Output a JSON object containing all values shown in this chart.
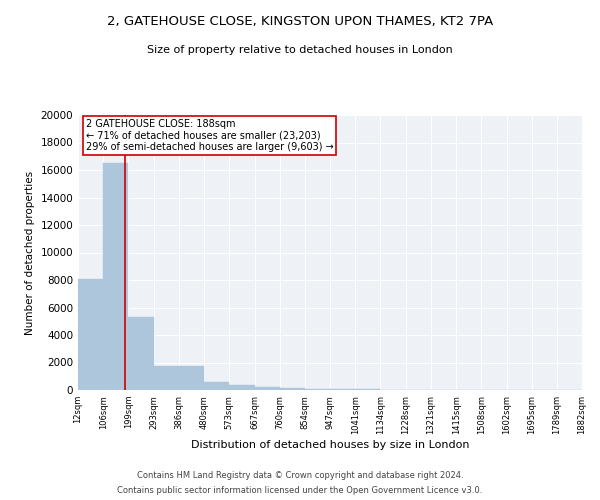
{
  "title": "2, GATEHOUSE CLOSE, KINGSTON UPON THAMES, KT2 7PA",
  "subtitle": "Size of property relative to detached houses in London",
  "xlabel": "Distribution of detached houses by size in London",
  "ylabel": "Number of detached properties",
  "property_size": 188,
  "property_label": "2 GATEHOUSE CLOSE: 188sqm",
  "annotation_line1": "← 71% of detached houses are smaller (23,203)",
  "annotation_line2": "29% of semi-detached houses are larger (9,603) →",
  "bar_color": "#aec6dc",
  "bar_edgecolor": "#aec6dc",
  "redline_color": "#cc0000",
  "annotation_box_edgecolor": "#cc0000",
  "background_color": "#eef2f7",
  "grid_color": "#ffffff",
  "bin_edges": [
    12,
    106,
    199,
    293,
    386,
    480,
    573,
    667,
    760,
    854,
    947,
    1041,
    1134,
    1228,
    1321,
    1415,
    1508,
    1602,
    1695,
    1789,
    1882
  ],
  "bar_heights": [
    8100,
    16500,
    5300,
    1750,
    1750,
    600,
    350,
    200,
    150,
    100,
    100,
    50,
    30,
    20,
    10,
    5,
    5,
    3,
    2,
    1
  ],
  "ylim": [
    0,
    20000
  ],
  "yticks": [
    0,
    2000,
    4000,
    6000,
    8000,
    10000,
    12000,
    14000,
    16000,
    18000,
    20000
  ],
  "footer_line1": "Contains HM Land Registry data © Crown copyright and database right 2024.",
  "footer_line2": "Contains public sector information licensed under the Open Government Licence v3.0."
}
